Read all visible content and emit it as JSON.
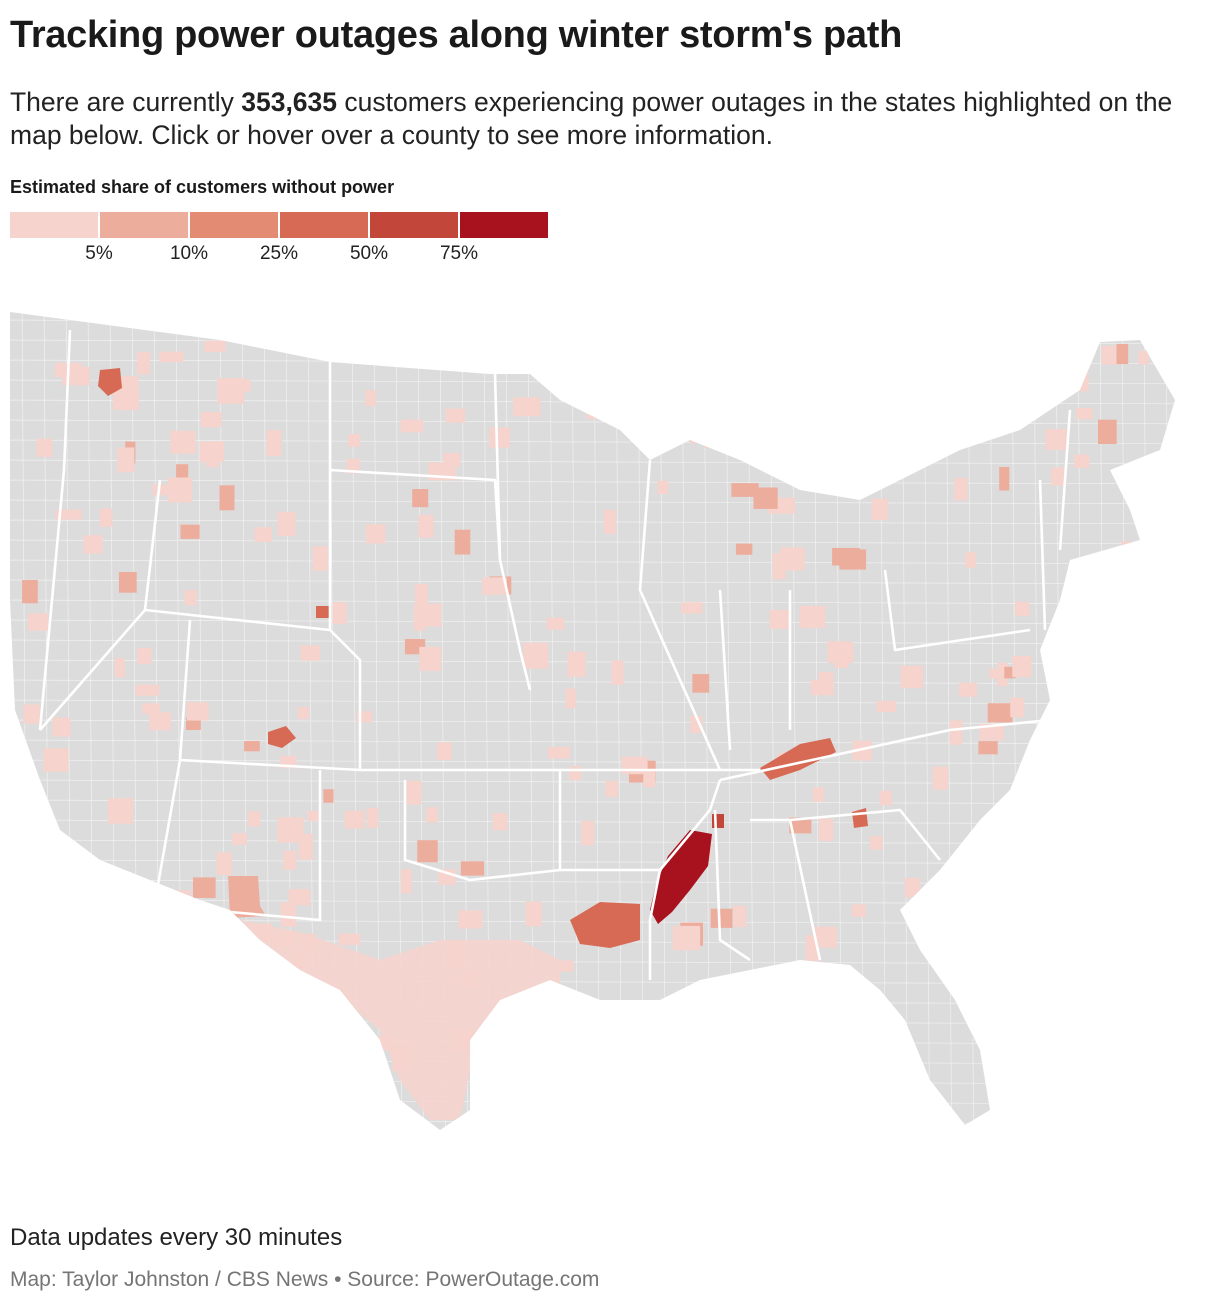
{
  "header": {
    "title": "Tracking power outages along winter storm's path",
    "subtitle_before": "There are currently ",
    "customer_count": "353,635",
    "subtitle_after": " customers experiencing power outages in the states highlighted on the map below. Click or hover over a county to see more information."
  },
  "legend": {
    "title": "Estimated share of customers without power",
    "tick_labels": [
      "5%",
      "10%",
      "25%",
      "50%",
      "75%"
    ],
    "colors": [
      "#f6d3cc",
      "#edad9d",
      "#e38b73",
      "#d76a55",
      "#c3463a",
      "#a8111e"
    ]
  },
  "map": {
    "region": "contiguous-united-states-counties",
    "base_color": "#dcdcdc",
    "border_color": "#ffffff",
    "highlights": [
      {
        "area": "northern-idaho",
        "level": 4
      },
      {
        "area": "central-colorado",
        "level": 4
      },
      {
        "area": "eastern-wyoming",
        "level": 4
      },
      {
        "area": "new-mexico-central",
        "level": 2
      },
      {
        "area": "arkansas-mississippi-delta",
        "level": 6
      },
      {
        "area": "northern-louisiana",
        "level": 4
      },
      {
        "area": "western-tennessee",
        "level": 5
      },
      {
        "area": "eastern-kentucky",
        "level": 4
      },
      {
        "area": "south-carolina-upstate",
        "level": 4
      },
      {
        "area": "texas-widespread",
        "level": 1
      }
    ]
  },
  "footer": {
    "update_note": "Data updates every 30 minutes",
    "credit": "Map: Taylor Johnston / CBS News • Source: PowerOutage.com"
  }
}
